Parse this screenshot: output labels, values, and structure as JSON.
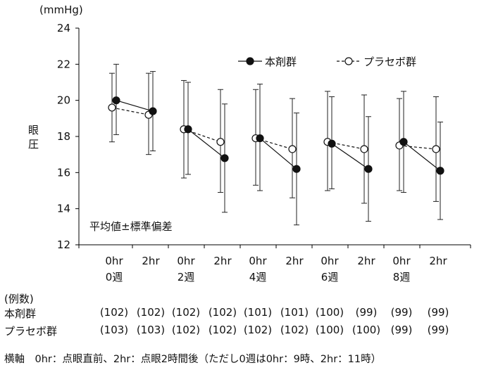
{
  "chart_data": {
    "type": "line",
    "unit": "(mmHg)",
    "ylabel": "眼圧",
    "ylim": [
      12,
      24
    ],
    "yticks": [
      12,
      14,
      16,
      18,
      20,
      22,
      24
    ],
    "x": [
      "0hr",
      "2hr",
      "0hr",
      "2hr",
      "0hr",
      "2hr",
      "0hr",
      "2hr",
      "0hr",
      "2hr"
    ],
    "weeks": [
      "0週",
      "2週",
      "4週",
      "6週",
      "8週"
    ],
    "annotation": "平均値±標準偏差",
    "legend_position": "top-right",
    "series": [
      {
        "name": "本剤群",
        "marker": "filled",
        "values": [
          20.0,
          19.4,
          18.4,
          16.8,
          17.9,
          16.2,
          17.6,
          16.2,
          17.7,
          16.1
        ],
        "error_upper": [
          22.0,
          21.6,
          21.0,
          19.8,
          20.9,
          19.3,
          20.2,
          19.1,
          20.5,
          18.8
        ],
        "error_lower": [
          18.1,
          17.2,
          15.9,
          13.8,
          15.0,
          13.1,
          15.1,
          13.3,
          14.9,
          13.4
        ]
      },
      {
        "name": "プラセボ群",
        "marker": "open",
        "values": [
          19.6,
          19.2,
          18.4,
          17.7,
          17.9,
          17.3,
          17.7,
          17.3,
          17.5,
          17.3
        ],
        "error_upper": [
          21.5,
          21.5,
          21.1,
          20.6,
          20.6,
          20.1,
          20.5,
          20.3,
          20.1,
          20.2
        ],
        "error_lower": [
          17.7,
          17.0,
          15.7,
          14.9,
          15.3,
          14.6,
          15.0,
          14.3,
          15.0,
          14.4
        ]
      }
    ]
  },
  "counts": {
    "title": "(例数)",
    "rows": [
      {
        "label": "本剤群",
        "values": [
          "(102)",
          "(102)",
          "(102)",
          "(102)",
          "(101)",
          "(101)",
          "(100)",
          "(99)",
          "(99)",
          "(99)"
        ]
      },
      {
        "label": "プラセボ群",
        "values": [
          "(103)",
          "(103)",
          "(102)",
          "(102)",
          "(102)",
          "(102)",
          "(100)",
          "(100)",
          "(99)",
          "(99)"
        ]
      }
    ]
  },
  "footnote": "横軸　0hr：点眼直前、2hr：点眼2時間後（ただし0週は0hr：9時、2hr：11時）"
}
